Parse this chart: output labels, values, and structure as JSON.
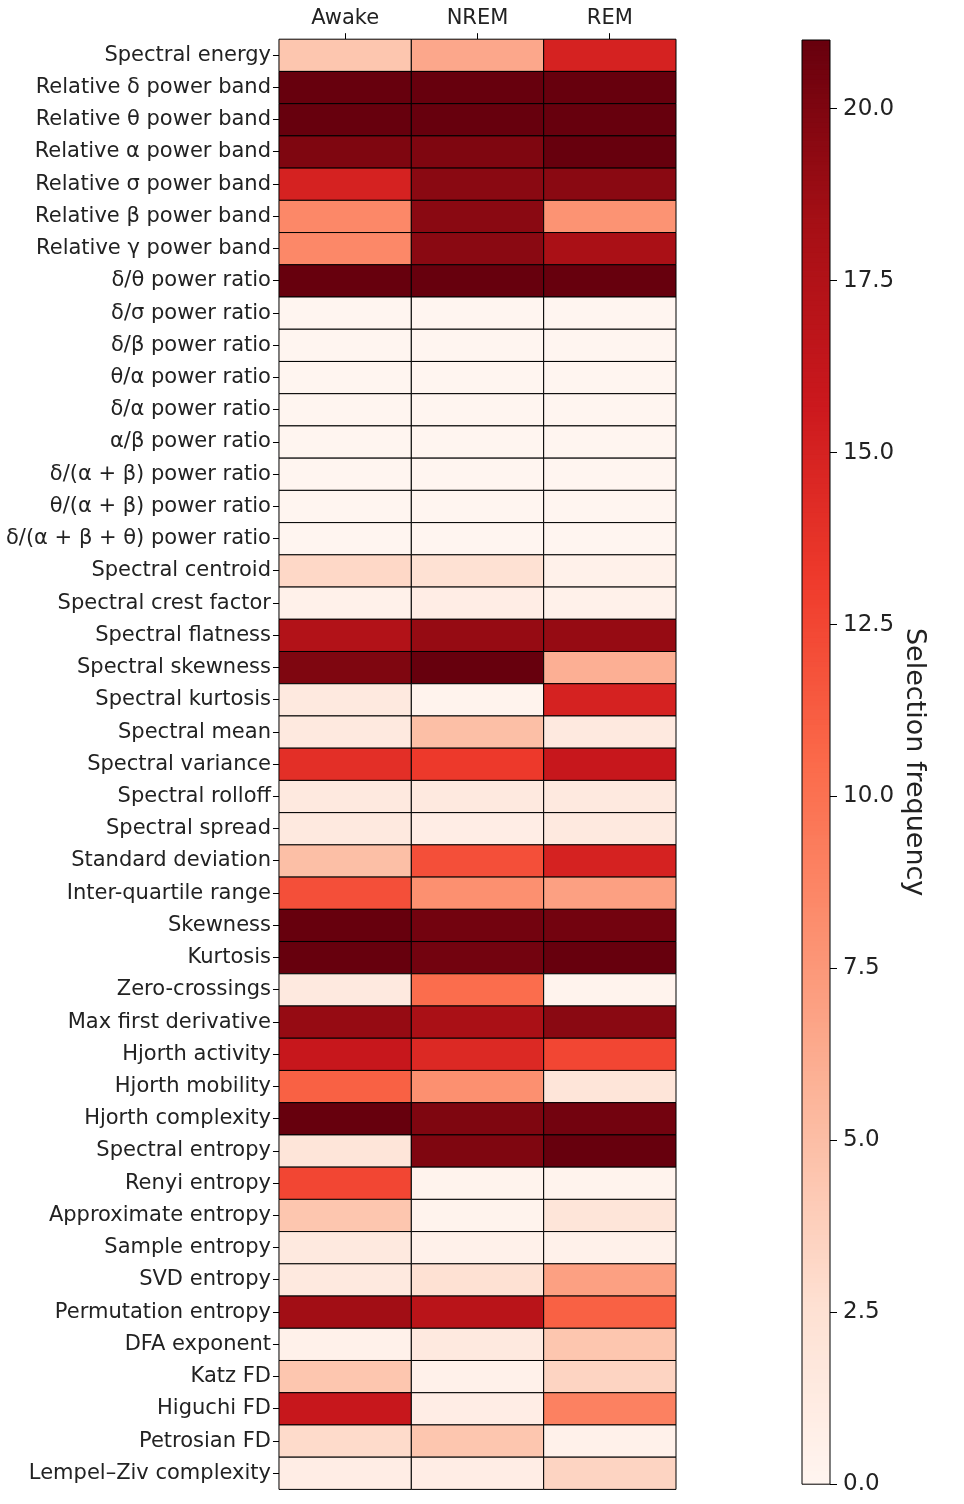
{
  "chart_data": {
    "type": "heatmap",
    "clabel": "Selection frequency",
    "categories": [
      "Awake",
      "NREM",
      "REM"
    ],
    "y_categories": [
      "Spectral energy",
      "Relative δ power band",
      "Relative θ power band",
      "Relative α power band",
      "Relative σ power band",
      "Relative β power band",
      "Relative γ power band",
      "δ/θ power ratio",
      "δ/σ power ratio",
      "δ/β power ratio",
      "θ/α power ratio",
      "δ/α power ratio",
      "α/β power ratio",
      "δ/(α + β) power ratio",
      "θ/(α + β) power ratio",
      "δ/(α + β + θ) power ratio",
      "Spectral centroid",
      "Spectral crest factor",
      "Spectral flatness",
      "Spectral skewness",
      "Spectral kurtosis",
      "Spectral mean",
      "Spectral variance",
      "Spectral rolloff",
      "Spectral spread",
      "Standard deviation",
      "Inter-quartile range",
      "Skewness",
      "Kurtosis",
      "Zero-crossings",
      "Max first derivative",
      "Hjorth activity",
      "Hjorth mobility",
      "Hjorth complexity",
      "Spectral entropy",
      "Renyi entropy",
      "Approximate entropy",
      "Sample entropy",
      "SVD entropy",
      "Permutation entropy",
      "DFA exponent",
      "Katz FD",
      "Higuchi FD",
      "Petrosian FD",
      "Lempel–Ziv complexity"
    ],
    "cells": [
      [
        4.5,
        6.5,
        15
      ],
      [
        21,
        21,
        21
      ],
      [
        21,
        21,
        21
      ],
      [
        20,
        20,
        21
      ],
      [
        15,
        19.5,
        19.5
      ],
      [
        8.5,
        19.5,
        7.8
      ],
      [
        8.5,
        19.5,
        18
      ],
      [
        21,
        21,
        21
      ],
      [
        0,
        0,
        0
      ],
      [
        0,
        0,
        0
      ],
      [
        0,
        0,
        0
      ],
      [
        0,
        0,
        0
      ],
      [
        0,
        0,
        0
      ],
      [
        0,
        0,
        0
      ],
      [
        0,
        0,
        0
      ],
      [
        0,
        0,
        0
      ],
      [
        3.2,
        2.5,
        0.5
      ],
      [
        0.5,
        1,
        0.5
      ],
      [
        17.5,
        19,
        19
      ],
      [
        20,
        21,
        6
      ],
      [
        1.5,
        0.3,
        15
      ],
      [
        1.5,
        5,
        1.5
      ],
      [
        14,
        13.3,
        16
      ],
      [
        1.5,
        1.5,
        1.5
      ],
      [
        1.5,
        1,
        1.5
      ],
      [
        5,
        12,
        15
      ],
      [
        12,
        8,
        7
      ],
      [
        21,
        20.5,
        20.5
      ],
      [
        21,
        20.5,
        21
      ],
      [
        1.5,
        10.3,
        0.3
      ],
      [
        19,
        18,
        19.5
      ],
      [
        16,
        14.5,
        12.5
      ],
      [
        11,
        8,
        2
      ],
      [
        21,
        20,
        20.5
      ],
      [
        2,
        20,
        21
      ],
      [
        12.5,
        0.3,
        0.3
      ],
      [
        4.5,
        0.3,
        2
      ],
      [
        1.5,
        0.5,
        0.5
      ],
      [
        1.5,
        2.5,
        7
      ],
      [
        18.5,
        17,
        11
      ],
      [
        0.5,
        1.5,
        4.5
      ],
      [
        4.5,
        0.5,
        3.5
      ],
      [
        16,
        1,
        9
      ],
      [
        3,
        4.5,
        0.5
      ],
      [
        1,
        1,
        3.5
      ]
    ],
    "clim": [
      0,
      21
    ],
    "cticks": [
      {
        "value": 0,
        "label": "0.0"
      },
      {
        "value": 2.5,
        "label": "2.5"
      },
      {
        "value": 5,
        "label": "5.0"
      },
      {
        "value": 7.5,
        "label": "7.5"
      },
      {
        "value": 10,
        "label": "10.0"
      },
      {
        "value": 12.5,
        "label": "12.5"
      },
      {
        "value": 15,
        "label": "15.0"
      },
      {
        "value": 17.5,
        "label": "17.5"
      },
      {
        "value": 20,
        "label": "20.0"
      }
    ]
  }
}
